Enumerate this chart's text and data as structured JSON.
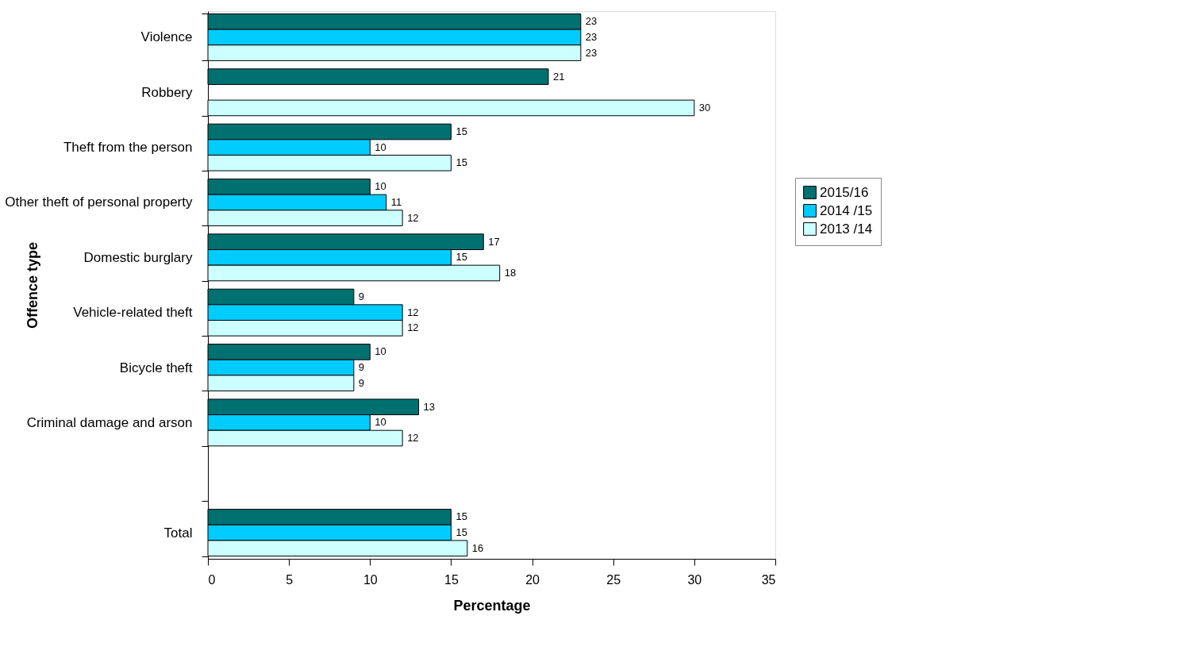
{
  "chart_data": {
    "type": "bar",
    "orientation": "horizontal",
    "xlabel": "Percentage",
    "ylabel": "Offence type",
    "categories": [
      "Violence",
      "Robbery",
      "Theft from the person",
      "Other theft of personal property",
      "Domestic burglary",
      "Vehicle-related theft",
      "Bicycle theft",
      "Criminal damage and arson",
      null,
      "Total"
    ],
    "series": [
      {
        "name": "2015/16",
        "color": "#007070",
        "values": [
          23,
          21,
          15,
          10,
          17,
          9,
          10,
          13,
          null,
          15
        ]
      },
      {
        "name": "2014 /15",
        "color": "#00ccff",
        "values": [
          23,
          null,
          10,
          11,
          15,
          12,
          9,
          10,
          null,
          15
        ]
      },
      {
        "name": "2013 /14",
        "color": "#ccffff",
        "values": [
          23,
          30,
          15,
          12,
          18,
          12,
          9,
          12,
          null,
          16
        ]
      }
    ],
    "xlim": [
      0,
      35
    ],
    "xticks": [
      0,
      5,
      10,
      15,
      20,
      25,
      30,
      35
    ],
    "grid": false,
    "legend": "right",
    "data_labels": true
  }
}
